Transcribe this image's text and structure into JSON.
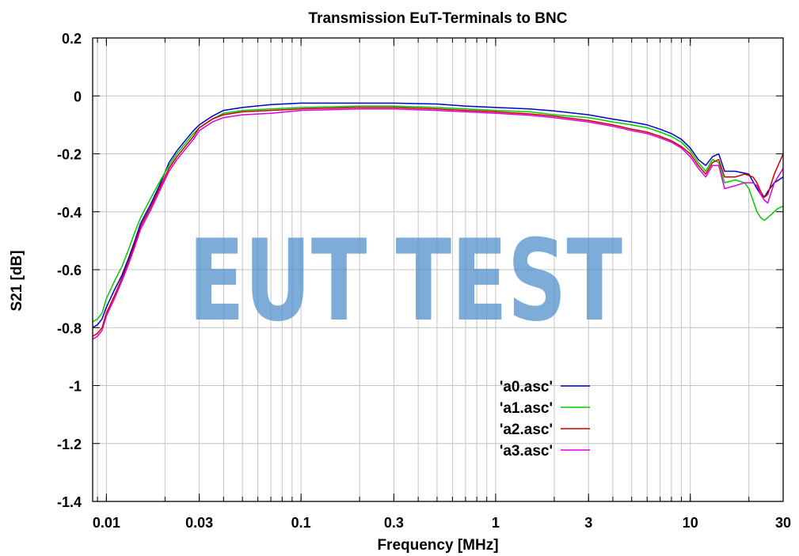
{
  "chart_data": {
    "type": "line",
    "title": "Transmission EuT-Terminals to BNC",
    "xlabel": "Frequency [MHz]",
    "ylabel": "S21 [dB]",
    "xscale": "log",
    "xlim": [
      0.0085,
      30
    ],
    "ylim": [
      -1.4,
      0.2
    ],
    "grid": true,
    "legend_position": "center-right",
    "x_ticks": [
      {
        "value": 0.01,
        "label": "0.01"
      },
      {
        "value": 0.03,
        "label": "0.03"
      },
      {
        "value": 0.1,
        "label": "0.1"
      },
      {
        "value": 0.3,
        "label": "0.3"
      },
      {
        "value": 1,
        "label": "1"
      },
      {
        "value": 3,
        "label": "3"
      },
      {
        "value": 10,
        "label": "10"
      },
      {
        "value": 30,
        "label": "30"
      }
    ],
    "y_ticks": [
      {
        "value": 0.2,
        "label": "0.2"
      },
      {
        "value": 0,
        "label": "0"
      },
      {
        "value": -0.2,
        "label": "-0.2"
      },
      {
        "value": -0.4,
        "label": "-0.4"
      },
      {
        "value": -0.6,
        "label": "-0.6"
      },
      {
        "value": -0.8,
        "label": "-0.8"
      },
      {
        "value": -1,
        "label": "-1"
      },
      {
        "value": -1.2,
        "label": "-1.2"
      },
      {
        "value": -1.4,
        "label": "-1.4"
      }
    ],
    "watermark": "EUT TEST",
    "series": [
      {
        "name": "'a0.asc'",
        "color": "#0000cc",
        "points": [
          [
            0.0085,
            -0.8
          ],
          [
            0.009,
            -0.79
          ],
          [
            0.0095,
            -0.77
          ],
          [
            0.01,
            -0.73
          ],
          [
            0.011,
            -0.67
          ],
          [
            0.012,
            -0.62
          ],
          [
            0.013,
            -0.56
          ],
          [
            0.014,
            -0.5
          ],
          [
            0.015,
            -0.44
          ],
          [
            0.017,
            -0.37
          ],
          [
            0.019,
            -0.3
          ],
          [
            0.021,
            -0.23
          ],
          [
            0.023,
            -0.19
          ],
          [
            0.025,
            -0.16
          ],
          [
            0.028,
            -0.12
          ],
          [
            0.03,
            -0.1
          ],
          [
            0.035,
            -0.07
          ],
          [
            0.04,
            -0.05
          ],
          [
            0.05,
            -0.04
          ],
          [
            0.07,
            -0.03
          ],
          [
            0.1,
            -0.025
          ],
          [
            0.2,
            -0.025
          ],
          [
            0.3,
            -0.025
          ],
          [
            0.5,
            -0.028
          ],
          [
            0.7,
            -0.035
          ],
          [
            1,
            -0.04
          ],
          [
            1.5,
            -0.045
          ],
          [
            2,
            -0.052
          ],
          [
            3,
            -0.065
          ],
          [
            4,
            -0.08
          ],
          [
            5,
            -0.09
          ],
          [
            6,
            -0.1
          ],
          [
            7,
            -0.115
          ],
          [
            8,
            -0.13
          ],
          [
            9,
            -0.15
          ],
          [
            10,
            -0.18
          ],
          [
            11,
            -0.22
          ],
          [
            12,
            -0.24
          ],
          [
            13,
            -0.21
          ],
          [
            14,
            -0.2
          ],
          [
            15,
            -0.26
          ],
          [
            17,
            -0.26
          ],
          [
            20,
            -0.27
          ],
          [
            22,
            -0.32
          ],
          [
            23,
            -0.34
          ],
          [
            24,
            -0.35
          ],
          [
            25,
            -0.33
          ],
          [
            27,
            -0.3
          ],
          [
            30,
            -0.28
          ]
        ]
      },
      {
        "name": "'a1.asc'",
        "color": "#00cc00",
        "points": [
          [
            0.0085,
            -0.78
          ],
          [
            0.009,
            -0.77
          ],
          [
            0.0095,
            -0.75
          ],
          [
            0.01,
            -0.7
          ],
          [
            0.011,
            -0.64
          ],
          [
            0.012,
            -0.59
          ],
          [
            0.013,
            -0.53
          ],
          [
            0.014,
            -0.47
          ],
          [
            0.015,
            -0.42
          ],
          [
            0.017,
            -0.35
          ],
          [
            0.019,
            -0.29
          ],
          [
            0.021,
            -0.24
          ],
          [
            0.023,
            -0.2
          ],
          [
            0.025,
            -0.17
          ],
          [
            0.028,
            -0.13
          ],
          [
            0.03,
            -0.11
          ],
          [
            0.035,
            -0.08
          ],
          [
            0.04,
            -0.06
          ],
          [
            0.05,
            -0.05
          ],
          [
            0.07,
            -0.045
          ],
          [
            0.1,
            -0.04
          ],
          [
            0.2,
            -0.035
          ],
          [
            0.3,
            -0.035
          ],
          [
            0.5,
            -0.04
          ],
          [
            0.7,
            -0.045
          ],
          [
            1,
            -0.05
          ],
          [
            1.5,
            -0.055
          ],
          [
            2,
            -0.065
          ],
          [
            3,
            -0.075
          ],
          [
            4,
            -0.09
          ],
          [
            5,
            -0.1
          ],
          [
            6,
            -0.11
          ],
          [
            7,
            -0.125
          ],
          [
            8,
            -0.14
          ],
          [
            9,
            -0.16
          ],
          [
            10,
            -0.19
          ],
          [
            11,
            -0.23
          ],
          [
            12,
            -0.26
          ],
          [
            13,
            -0.22
          ],
          [
            14,
            -0.23
          ],
          [
            15,
            -0.3
          ],
          [
            17,
            -0.29
          ],
          [
            19,
            -0.3
          ],
          [
            20,
            -0.32
          ],
          [
            22,
            -0.4
          ],
          [
            23,
            -0.42
          ],
          [
            24,
            -0.43
          ],
          [
            26,
            -0.41
          ],
          [
            28,
            -0.39
          ],
          [
            30,
            -0.38
          ]
        ]
      },
      {
        "name": "'a2.asc'",
        "color": "#cc0000",
        "points": [
          [
            0.0085,
            -0.83
          ],
          [
            0.009,
            -0.82
          ],
          [
            0.0095,
            -0.8
          ],
          [
            0.01,
            -0.75
          ],
          [
            0.011,
            -0.69
          ],
          [
            0.012,
            -0.63
          ],
          [
            0.013,
            -0.57
          ],
          [
            0.014,
            -0.51
          ],
          [
            0.015,
            -0.45
          ],
          [
            0.017,
            -0.38
          ],
          [
            0.019,
            -0.31
          ],
          [
            0.021,
            -0.25
          ],
          [
            0.023,
            -0.21
          ],
          [
            0.025,
            -0.18
          ],
          [
            0.028,
            -0.14
          ],
          [
            0.03,
            -0.11
          ],
          [
            0.035,
            -0.08
          ],
          [
            0.04,
            -0.065
          ],
          [
            0.05,
            -0.055
          ],
          [
            0.07,
            -0.05
          ],
          [
            0.1,
            -0.045
          ],
          [
            0.2,
            -0.04
          ],
          [
            0.3,
            -0.04
          ],
          [
            0.5,
            -0.045
          ],
          [
            0.7,
            -0.05
          ],
          [
            1,
            -0.055
          ],
          [
            1.5,
            -0.062
          ],
          [
            2,
            -0.07
          ],
          [
            3,
            -0.085
          ],
          [
            4,
            -0.1
          ],
          [
            5,
            -0.115
          ],
          [
            6,
            -0.125
          ],
          [
            7,
            -0.14
          ],
          [
            8,
            -0.155
          ],
          [
            9,
            -0.175
          ],
          [
            10,
            -0.2
          ],
          [
            11,
            -0.24
          ],
          [
            12,
            -0.27
          ],
          [
            13,
            -0.23
          ],
          [
            14,
            -0.22
          ],
          [
            15,
            -0.28
          ],
          [
            17,
            -0.28
          ],
          [
            19,
            -0.27
          ],
          [
            21,
            -0.28
          ],
          [
            22,
            -0.3
          ],
          [
            23,
            -0.33
          ],
          [
            24,
            -0.35
          ],
          [
            25,
            -0.34
          ],
          [
            27,
            -0.27
          ],
          [
            30,
            -0.2
          ]
        ]
      },
      {
        "name": "'a3.asc'",
        "color": "#dd00dd",
        "points": [
          [
            0.0085,
            -0.84
          ],
          [
            0.009,
            -0.83
          ],
          [
            0.0095,
            -0.81
          ],
          [
            0.01,
            -0.76
          ],
          [
            0.011,
            -0.7
          ],
          [
            0.012,
            -0.64
          ],
          [
            0.013,
            -0.58
          ],
          [
            0.014,
            -0.52
          ],
          [
            0.015,
            -0.46
          ],
          [
            0.017,
            -0.39
          ],
          [
            0.019,
            -0.32
          ],
          [
            0.021,
            -0.26
          ],
          [
            0.023,
            -0.22
          ],
          [
            0.025,
            -0.19
          ],
          [
            0.028,
            -0.15
          ],
          [
            0.03,
            -0.12
          ],
          [
            0.035,
            -0.09
          ],
          [
            0.04,
            -0.075
          ],
          [
            0.05,
            -0.065
          ],
          [
            0.07,
            -0.06
          ],
          [
            0.1,
            -0.05
          ],
          [
            0.2,
            -0.045
          ],
          [
            0.3,
            -0.045
          ],
          [
            0.5,
            -0.05
          ],
          [
            0.7,
            -0.055
          ],
          [
            1,
            -0.06
          ],
          [
            1.5,
            -0.067
          ],
          [
            2,
            -0.075
          ],
          [
            3,
            -0.09
          ],
          [
            4,
            -0.105
          ],
          [
            5,
            -0.12
          ],
          [
            6,
            -0.13
          ],
          [
            7,
            -0.145
          ],
          [
            8,
            -0.16
          ],
          [
            9,
            -0.18
          ],
          [
            10,
            -0.21
          ],
          [
            11,
            -0.25
          ],
          [
            12,
            -0.28
          ],
          [
            13,
            -0.24
          ],
          [
            14,
            -0.24
          ],
          [
            15,
            -0.32
          ],
          [
            17,
            -0.31
          ],
          [
            19,
            -0.3
          ],
          [
            21,
            -0.3
          ],
          [
            22,
            -0.31
          ],
          [
            23,
            -0.34
          ],
          [
            24,
            -0.36
          ],
          [
            25,
            -0.37
          ],
          [
            27,
            -0.3
          ],
          [
            30,
            -0.25
          ]
        ]
      }
    ]
  }
}
